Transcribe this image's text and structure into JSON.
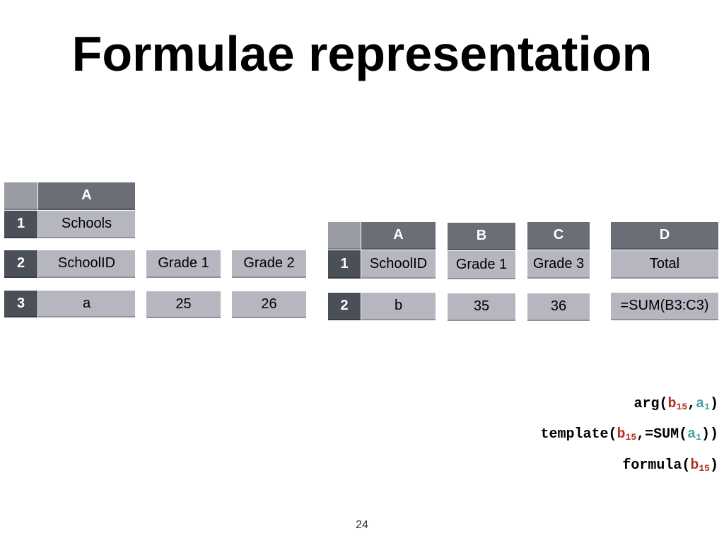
{
  "slide": {
    "title": "Formulae representation",
    "page_number": "24"
  },
  "left_sheet": {
    "column_header": "A",
    "rows": [
      {
        "row": "1",
        "cell_a": "Schools"
      },
      {
        "row": "2",
        "cell_a": "SchoolID"
      },
      {
        "row": "3",
        "cell_a": "a"
      }
    ],
    "loose_cells": {
      "grade1_label": "Grade 1",
      "grade2_label": "Grade 2",
      "grade1_value": "25",
      "grade2_value": "26"
    }
  },
  "right_sheet": {
    "column_headers": [
      "A",
      "B",
      "C",
      "D"
    ],
    "rows": [
      {
        "row": "1",
        "cells": [
          "SchoolID",
          "Grade 1",
          "Grade 3",
          "Total"
        ]
      },
      {
        "row": "2",
        "cells": [
          "b",
          "35",
          "36",
          "=SUM(B3:C3)"
        ]
      }
    ]
  },
  "formulas": {
    "arg": {
      "fn": "arg(",
      "p1": "b",
      "p1_sub": "15",
      "sep": ",",
      "p2": "a",
      "p2_sub": "1",
      "close": ")"
    },
    "template": {
      "fn": "template(",
      "p1": "b",
      "p1_sub": "15",
      "sep": ",=SUM(",
      "p2": "a",
      "p2_sub": "1",
      "close": "))"
    },
    "formula": {
      "fn": "formula(",
      "p1": "b",
      "p1_sub": "15",
      "close": ")"
    }
  },
  "colors": {
    "column_header": "#6b6e76",
    "row_header": "#4b4f57",
    "cell_body": "#b5b6bf",
    "arg_highlight_red": "#b0301e",
    "arg_highlight_teal": "#4aa39d"
  }
}
